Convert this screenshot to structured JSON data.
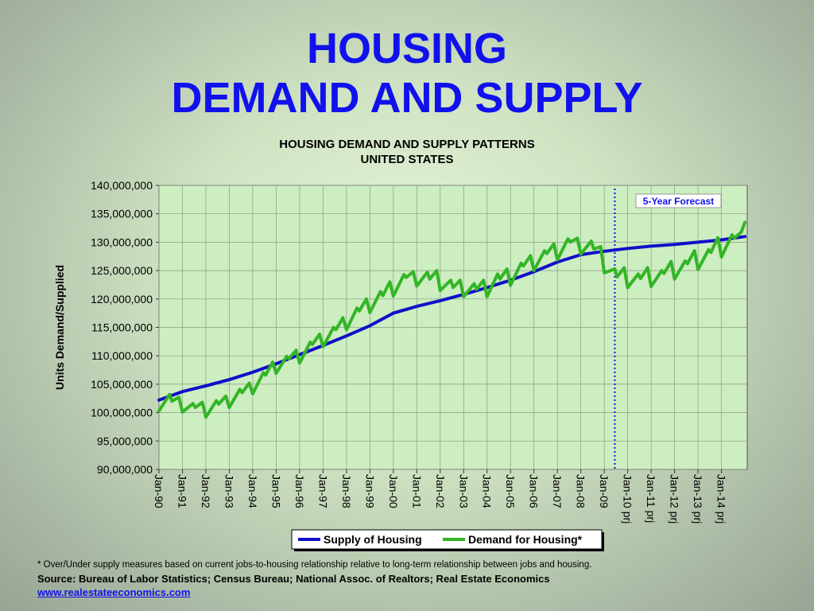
{
  "slide": {
    "title_line1": "HOUSING",
    "title_line2": "DEMAND AND SUPPLY"
  },
  "footer": {
    "footnote": "* Over/Under supply measures based on current jobs-to-housing relationship relative to long-term relationship between jobs and housing.",
    "source": "Source: Bureau of Labor Statistics; Census Bureau; National Assoc. of Realtors; Real Estate Economics",
    "link": "www.realestateeconomics.com"
  },
  "chart_data": {
    "type": "line",
    "title": "HOUSING DEMAND AND SUPPLY PATTERNS",
    "subtitle": "UNITED STATES",
    "ylabel": "Units Demand/Supplied",
    "xlabel": "",
    "ylim": [
      90000000,
      140000000
    ],
    "y_ticks": [
      90000000,
      95000000,
      100000000,
      105000000,
      110000000,
      115000000,
      120000000,
      125000000,
      130000000,
      135000000,
      140000000
    ],
    "y_tick_labels": [
      "90,000,000",
      "95,000,000",
      "100,000,000",
      "105,000,000",
      "110,000,000",
      "115,000,000",
      "120,000,000",
      "125,000,000",
      "130,000,000",
      "135,000,000",
      "140,000,000"
    ],
    "x_range": [
      1990,
      2015.1
    ],
    "x_ticks": [
      1990,
      1991,
      1992,
      1993,
      1994,
      1995,
      1996,
      1997,
      1998,
      1999,
      2000,
      2001,
      2002,
      2003,
      2004,
      2005,
      2006,
      2007,
      2008,
      2009,
      2010,
      2011,
      2012,
      2013,
      2014
    ],
    "x_tick_labels": [
      "Jan-90",
      "Jan-91",
      "Jan-92",
      "Jan-93",
      "Jan-94",
      "Jan-95",
      "Jan-96",
      "Jan-97",
      "Jan-98",
      "Jan-99",
      "Jan-00",
      "Jan-01",
      "Jan-02",
      "Jan-03",
      "Jan-04",
      "Jan-05",
      "Jan-06",
      "Jan-07",
      "Jan-08",
      "Jan-09",
      "Jan-10 prj",
      "Jan-11 prj",
      "Jan-12 prj",
      "Jan-13 prj",
      "Jan-14 prj"
    ],
    "grid": true,
    "legend_position": "bottom",
    "annotations": [
      {
        "text": "5-Year Forecast",
        "position": "top-right",
        "text_color": "#1111ee"
      }
    ],
    "forecast_start_x": 2009.45,
    "series": [
      {
        "name": "Supply of Housing",
        "color": "#1010c8",
        "points": [
          [
            1990,
            102200000
          ],
          [
            1991,
            103700000
          ],
          [
            1992,
            104700000
          ],
          [
            1993,
            105800000
          ],
          [
            1994,
            107100000
          ],
          [
            1995,
            108600000
          ],
          [
            1996,
            110200000
          ],
          [
            1997,
            111800000
          ],
          [
            1998,
            113500000
          ],
          [
            1999,
            115300000
          ],
          [
            2000,
            117500000
          ],
          [
            2001,
            118700000
          ],
          [
            2002,
            119700000
          ],
          [
            2003,
            120800000
          ],
          [
            2004,
            122000000
          ],
          [
            2005,
            123300000
          ],
          [
            2006,
            124800000
          ],
          [
            2007,
            126500000
          ],
          [
            2008,
            127800000
          ],
          [
            2009,
            128400000
          ],
          [
            2010,
            128900000
          ],
          [
            2011,
            129300000
          ],
          [
            2012,
            129600000
          ],
          [
            2013,
            130000000
          ],
          [
            2014,
            130400000
          ],
          [
            2015,
            131000000
          ]
        ]
      },
      {
        "name": "Demand for Housing*",
        "color": "#33b526",
        "points": [
          [
            1990.0,
            100300000
          ],
          [
            1990.45,
            103200000
          ],
          [
            1990.55,
            102000000
          ],
          [
            1990.85,
            102700000
          ],
          [
            1991.0,
            100100000
          ],
          [
            1991.45,
            101600000
          ],
          [
            1991.55,
            100900000
          ],
          [
            1991.85,
            101800000
          ],
          [
            1992.0,
            99200000
          ],
          [
            1992.45,
            102100000
          ],
          [
            1992.55,
            101500000
          ],
          [
            1992.85,
            102900000
          ],
          [
            1993.0,
            100900000
          ],
          [
            1993.45,
            104100000
          ],
          [
            1993.55,
            103500000
          ],
          [
            1993.85,
            105200000
          ],
          [
            1994.0,
            103300000
          ],
          [
            1994.45,
            107000000
          ],
          [
            1994.55,
            106600000
          ],
          [
            1994.85,
            108900000
          ],
          [
            1995.0,
            106900000
          ],
          [
            1995.45,
            109900000
          ],
          [
            1995.55,
            109500000
          ],
          [
            1995.85,
            111000000
          ],
          [
            1996.0,
            108700000
          ],
          [
            1996.45,
            112400000
          ],
          [
            1996.55,
            112000000
          ],
          [
            1996.85,
            113800000
          ],
          [
            1997.0,
            111600000
          ],
          [
            1997.45,
            115000000
          ],
          [
            1997.55,
            114600000
          ],
          [
            1997.85,
            116700000
          ],
          [
            1998.0,
            114600000
          ],
          [
            1998.45,
            118400000
          ],
          [
            1998.55,
            117900000
          ],
          [
            1998.85,
            120000000
          ],
          [
            1999.0,
            117600000
          ],
          [
            1999.45,
            121300000
          ],
          [
            1999.55,
            120600000
          ],
          [
            1999.85,
            123000000
          ],
          [
            2000.0,
            120500000
          ],
          [
            2000.45,
            124300000
          ],
          [
            2000.55,
            123800000
          ],
          [
            2000.85,
            124800000
          ],
          [
            2001.0,
            122300000
          ],
          [
            2001.45,
            124700000
          ],
          [
            2001.55,
            123500000
          ],
          [
            2001.85,
            125000000
          ],
          [
            2002.0,
            121500000
          ],
          [
            2002.45,
            123300000
          ],
          [
            2002.55,
            122000000
          ],
          [
            2002.85,
            123300000
          ],
          [
            2003.0,
            120400000
          ],
          [
            2003.45,
            122700000
          ],
          [
            2003.55,
            121700000
          ],
          [
            2003.85,
            123300000
          ],
          [
            2004.0,
            120400000
          ],
          [
            2004.45,
            124400000
          ],
          [
            2004.55,
            123500000
          ],
          [
            2004.85,
            125300000
          ],
          [
            2005.0,
            122400000
          ],
          [
            2005.45,
            126300000
          ],
          [
            2005.55,
            125800000
          ],
          [
            2005.85,
            127600000
          ],
          [
            2006.0,
            125000000
          ],
          [
            2006.45,
            128500000
          ],
          [
            2006.55,
            128000000
          ],
          [
            2006.85,
            129700000
          ],
          [
            2007.0,
            126900000
          ],
          [
            2007.45,
            130600000
          ],
          [
            2007.55,
            130000000
          ],
          [
            2007.85,
            130700000
          ],
          [
            2008.0,
            127900000
          ],
          [
            2008.45,
            130200000
          ],
          [
            2008.55,
            128800000
          ],
          [
            2008.85,
            129200000
          ],
          [
            2009.0,
            124600000
          ],
          [
            2009.45,
            125300000
          ],
          [
            2009.55,
            123900000
          ],
          [
            2009.85,
            125500000
          ],
          [
            2010.0,
            122000000
          ],
          [
            2010.45,
            124400000
          ],
          [
            2010.55,
            123600000
          ],
          [
            2010.85,
            125500000
          ],
          [
            2011.0,
            122200000
          ],
          [
            2011.45,
            125000000
          ],
          [
            2011.55,
            124500000
          ],
          [
            2011.85,
            126600000
          ],
          [
            2012.0,
            123500000
          ],
          [
            2012.45,
            126700000
          ],
          [
            2012.55,
            126200000
          ],
          [
            2012.85,
            128500000
          ],
          [
            2013.0,
            125200000
          ],
          [
            2013.45,
            128700000
          ],
          [
            2013.55,
            128200000
          ],
          [
            2013.85,
            130800000
          ],
          [
            2014.0,
            127400000
          ],
          [
            2014.45,
            131300000
          ],
          [
            2014.55,
            130700000
          ],
          [
            2014.85,
            131800000
          ],
          [
            2015.0,
            133500000
          ]
        ]
      }
    ]
  }
}
